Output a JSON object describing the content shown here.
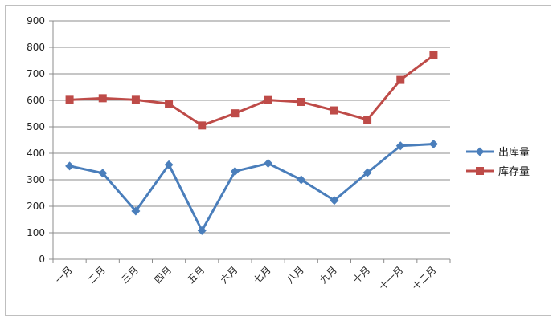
{
  "chart_data": {
    "type": "line",
    "categories": [
      "一月",
      "二月",
      "三月",
      "四月",
      "五月",
      "六月",
      "七月",
      "八月",
      "九月",
      "十月",
      "十一月",
      "十二月"
    ],
    "series": [
      {
        "name": "出库量",
        "values": [
          352,
          325,
          182,
          357,
          108,
          332,
          362,
          300,
          222,
          327,
          428,
          435
        ],
        "color": "#4a7ebb",
        "marker": "diamond"
      },
      {
        "name": "库存量",
        "values": [
          602,
          608,
          602,
          587,
          505,
          551,
          601,
          594,
          562,
          527,
          677,
          770
        ],
        "color": "#be4b48",
        "marker": "square"
      }
    ],
    "ylim": [
      0,
      900
    ],
    "yticks": [
      0,
      100,
      200,
      300,
      400,
      500,
      600,
      700,
      800,
      900
    ],
    "grid": true,
    "legend": "right"
  }
}
